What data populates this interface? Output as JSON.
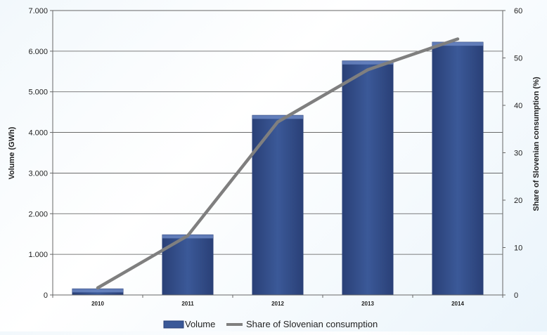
{
  "chart_data": {
    "type": "bar",
    "categories": [
      "2010",
      "2011",
      "2012",
      "2013",
      "2014"
    ],
    "series": [
      {
        "name": "Volume",
        "type": "bar",
        "axis": "left",
        "values": [
          150,
          1480,
          4420,
          5760,
          6220
        ]
      },
      {
        "name": "Share of Slovenian consumption",
        "type": "line",
        "axis": "right",
        "values": [
          1.5,
          12.5,
          36.5,
          47.5,
          54
        ]
      }
    ],
    "ylabel": "Volume (GWh)",
    "ylim": [
      0,
      7000
    ],
    "yticks": [
      0,
      1000,
      2000,
      3000,
      4000,
      5000,
      6000,
      7000
    ],
    "ytick_labels": [
      "0",
      "1.000",
      "2.000",
      "3.000",
      "4.000",
      "5.000",
      "6.000",
      "7.000"
    ],
    "y2label": "Share of Slovenian consumption (%)",
    "y2lim": [
      0,
      60
    ],
    "y2ticks": [
      0,
      10,
      20,
      30,
      40,
      50,
      60
    ],
    "y2tick_labels": [
      "0",
      "10",
      "20",
      "30",
      "40",
      "50",
      "60"
    ],
    "grid": true,
    "legend_position": "bottom-center",
    "colors": {
      "bar": "#3b5998",
      "bar_dark": "#2a4077",
      "bar_light": "#6e89c6",
      "line": "#7f7f7f",
      "grid": "#555555"
    }
  }
}
